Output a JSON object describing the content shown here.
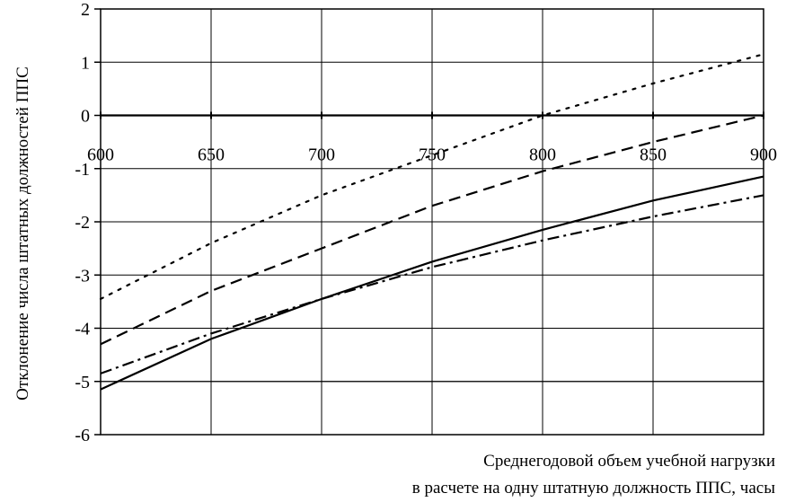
{
  "chart_data": {
    "type": "line",
    "title": "",
    "xlabel_line1": "Среднегодовой объем учебной нагрузки",
    "xlabel_line2": "в расчете на одну штатную должность ППС, часы",
    "ylabel": "Отклонение числа штатных должностей ППС",
    "xlim": [
      600,
      900
    ],
    "ylim": [
      -6,
      2
    ],
    "x_ticks": [
      600,
      650,
      700,
      750,
      800,
      850,
      900
    ],
    "y_ticks": [
      2,
      1,
      0,
      -1,
      -2,
      -3,
      -4,
      -5,
      -6
    ],
    "grid": true,
    "x_tick_labels_position": "along zero line",
    "series": [
      {
        "style": "dotted",
        "x": [
          600,
          650,
          700,
          750,
          800,
          850,
          900
        ],
        "y": [
          -3.45,
          -2.4,
          -1.5,
          -0.75,
          0.0,
          0.6,
          1.15
        ]
      },
      {
        "style": "dashed",
        "x": [
          600,
          650,
          700,
          750,
          800,
          850,
          900
        ],
        "y": [
          -4.3,
          -3.3,
          -2.5,
          -1.7,
          -1.05,
          -0.5,
          0.0
        ]
      },
      {
        "style": "solid",
        "x": [
          600,
          650,
          700,
          750,
          800,
          850,
          900
        ],
        "y": [
          -5.15,
          -4.2,
          -3.45,
          -2.75,
          -2.15,
          -1.6,
          -1.15
        ]
      },
      {
        "style": "dash-dot",
        "x": [
          600,
          650,
          700,
          750,
          800,
          850,
          900
        ],
        "y": [
          -4.85,
          -4.1,
          -3.45,
          -2.85,
          -2.35,
          -1.9,
          -1.5
        ]
      },
      {
        "style": "solid-thin",
        "x": [
          600,
          900
        ],
        "y": [
          -5.0,
          -5.0
        ]
      }
    ]
  }
}
